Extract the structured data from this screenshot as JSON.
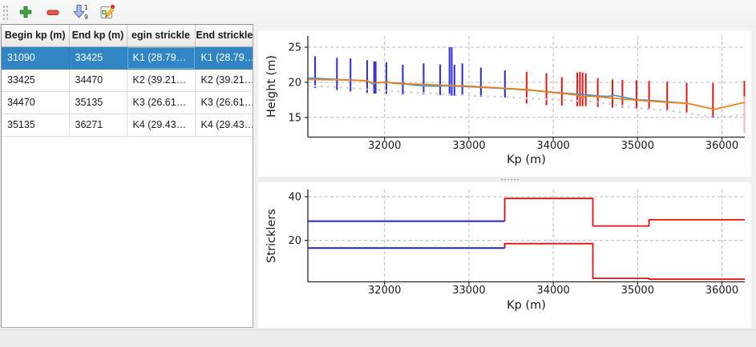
{
  "toolbar": {
    "buttons": [
      {
        "name": "add",
        "icon": "plus-icon"
      },
      {
        "name": "remove",
        "icon": "minus-icon"
      },
      {
        "name": "sort",
        "icon": "sort-numeric-down-icon",
        "digit_top": "1",
        "digit_bottom": "9"
      },
      {
        "name": "edit",
        "icon": "edit-pencil-page-icon"
      }
    ]
  },
  "table": {
    "columns": [
      "Begin kp (m)",
      "End kp (m)",
      "egin strickle",
      "End strickler"
    ],
    "rows": [
      [
        "31090",
        "33425",
        "K1 (28.79…",
        "K1 (28.79…"
      ],
      [
        "33425",
        "34470",
        "K2 (39.21…",
        "K2 (39.21…"
      ],
      [
        "34470",
        "35135",
        "K3 (26.61…",
        "K3 (26.61…"
      ],
      [
        "35135",
        "36271",
        "K4 (29.43…",
        "K4 (29.43…"
      ]
    ],
    "selected_row_index": 0,
    "focused_cell_column": 2
  },
  "colors": {
    "selection_blue": "#3086c5",
    "spike_blue": "#3434d6",
    "spike_red": "#e01818",
    "spike_pale_red": "#f6b4b4",
    "line_blue": "#4f95cc",
    "line_orange": "#e8831a",
    "line_gray_dotted": "#cccccc",
    "step_blue": "#2121cc",
    "step_red": "#e81010"
  },
  "chart_data": [
    {
      "type": "line",
      "title": "",
      "xlabel": "Kp (m)",
      "ylabel": "Height (m)",
      "xlim": [
        31090,
        36271
      ],
      "ylim": [
        12.2,
        26.6
      ],
      "xticks": [
        32000,
        33000,
        34000,
        35000,
        36000
      ],
      "yticks": [
        15,
        20,
        25
      ],
      "grid": true,
      "legend": "none",
      "series": [
        {
          "name": "blue-cross-section-spikes",
          "type": "vlines",
          "color": "#3434d6",
          "width": 2.1,
          "lines": [
            [
              31176,
              19.2,
              23.7
            ],
            [
              31435,
              18.9,
              23.5
            ],
            [
              31596,
              18.7,
              23.4
            ],
            [
              31793,
              18.5,
              23.15
            ],
            [
              31876,
              18.4,
              23.0
            ],
            [
              31894,
              18.4,
              22.95
            ],
            [
              32021,
              18.35,
              22.85
            ],
            [
              32216,
              18.3,
              22.5
            ],
            [
              32463,
              18.25,
              22.7
            ],
            [
              32659,
              18.2,
              22.55
            ],
            [
              32770,
              18.1,
              25.0
            ],
            [
              32796,
              18.1,
              25.0
            ],
            [
              32828,
              18.1,
              22.5
            ],
            [
              32922,
              18.1,
              22.7
            ],
            [
              33142,
              17.95,
              22.1
            ],
            [
              33427,
              17.85,
              21.7
            ]
          ]
        },
        {
          "name": "red-cross-section-spikes",
          "type": "vlines",
          "color": "#e01818",
          "width": 2.0,
          "lines": [
            [
              33684,
              17.0,
              21.5
            ],
            [
              33919,
              16.75,
              21.3
            ],
            [
              34102,
              16.7,
              20.75
            ],
            [
              34285,
              16.6,
              21.4
            ],
            [
              34317,
              16.6,
              21.5
            ],
            [
              34348,
              16.6,
              21.4
            ],
            [
              34386,
              16.6,
              21.3
            ],
            [
              34528,
              16.5,
              20.6
            ],
            [
              34702,
              16.4,
              20.4
            ],
            [
              34820,
              16.4,
              20.35
            ],
            [
              34987,
              16.3,
              20.3
            ],
            [
              35136,
              16.2,
              20.2
            ],
            [
              35351,
              15.9,
              20.1
            ],
            [
              35582,
              15.7,
              19.9
            ],
            [
              35894,
              15.0,
              19.9
            ],
            [
              36266,
              18.0,
              20.2
            ]
          ]
        },
        {
          "name": "pale-red-spike",
          "type": "vlines",
          "color": "#f6b4b4",
          "width": 2.0,
          "lines": [
            [
              36266,
              12.8,
              18.0
            ]
          ]
        },
        {
          "name": "bed-profile-dotted-gray",
          "type": "dotted",
          "color": "#cccccc",
          "width": 2.4,
          "points": [
            [
              31090,
              19.55
            ],
            [
              31450,
              19.3
            ],
            [
              31790,
              19.0
            ],
            [
              32030,
              18.8
            ],
            [
              32350,
              18.55
            ],
            [
              32700,
              18.3
            ],
            [
              33000,
              18.1
            ],
            [
              33430,
              17.9
            ],
            [
              34000,
              17.55
            ],
            [
              34470,
              17.25
            ],
            [
              35000,
              16.35
            ],
            [
              35455,
              15.85
            ],
            [
              35940,
              15.0
            ],
            [
              36271,
              15.4
            ]
          ]
        },
        {
          "name": "water-level-blue",
          "type": "line",
          "color": "#4f95cc",
          "width": 1.7,
          "points": [
            [
              31090,
              20.65
            ],
            [
              31300,
              20.5
            ],
            [
              31450,
              20.4
            ],
            [
              31650,
              20.3
            ],
            [
              31790,
              20.25
            ],
            [
              31850,
              19.8
            ],
            [
              31910,
              19.95
            ],
            [
              32030,
              20.05
            ],
            [
              32110,
              19.85
            ],
            [
              32250,
              19.75
            ],
            [
              32380,
              19.55
            ],
            [
              32470,
              19.5
            ],
            [
              32600,
              19.45
            ],
            [
              32800,
              19.5
            ],
            [
              32950,
              19.4
            ],
            [
              33140,
              19.3
            ],
            [
              33430,
              19.1
            ],
            [
              33700,
              18.9
            ],
            [
              34000,
              18.6
            ],
            [
              34300,
              18.3
            ],
            [
              34470,
              18.15
            ],
            [
              34560,
              18.05
            ],
            [
              34650,
              18.0
            ],
            [
              34720,
              18.15
            ],
            [
              34810,
              17.95
            ],
            [
              35000,
              17.5
            ],
            [
              35140,
              17.45
            ],
            [
              35590,
              17.0
            ]
          ]
        },
        {
          "name": "profile-orange",
          "type": "line",
          "color": "#e8831a",
          "width": 1.8,
          "points": [
            [
              31090,
              20.4
            ],
            [
              31450,
              20.35
            ],
            [
              31650,
              20.3
            ],
            [
              31790,
              20.2
            ],
            [
              31870,
              19.9
            ],
            [
              32030,
              20.0
            ],
            [
              32250,
              19.8
            ],
            [
              32470,
              19.7
            ],
            [
              32800,
              19.55
            ],
            [
              33000,
              19.45
            ],
            [
              33430,
              19.15
            ],
            [
              33700,
              18.95
            ],
            [
              34000,
              18.55
            ],
            [
              34280,
              18.2
            ],
            [
              34330,
              17.85
            ],
            [
              34400,
              18.05
            ],
            [
              34470,
              18.0
            ],
            [
              35000,
              17.45
            ],
            [
              35300,
              17.2
            ],
            [
              35590,
              17.0
            ],
            [
              35910,
              16.15
            ],
            [
              36271,
              17.15
            ]
          ]
        }
      ]
    },
    {
      "type": "step",
      "title": "",
      "xlabel": "Kp (m)",
      "ylabel": "Stricklers",
      "xlim": [
        31090,
        36271
      ],
      "ylim": [
        1.0,
        43.3
      ],
      "xticks": [
        32000,
        33000,
        34000,
        35000,
        36000
      ],
      "yticks": [
        20,
        40
      ],
      "grid": true,
      "legend": "none",
      "series": [
        {
          "name": "upper-strickler-red",
          "type": "line",
          "color": "#e81010",
          "width": 1.8,
          "points": [
            [
              33425,
              28.79
            ],
            [
              33425,
              39.21
            ],
            [
              34470,
              39.21
            ],
            [
              34470,
              26.61
            ],
            [
              35135,
              26.61
            ],
            [
              35135,
              29.43
            ],
            [
              36271,
              29.43
            ]
          ]
        },
        {
          "name": "lower-strickler-red",
          "type": "line",
          "color": "#e81010",
          "width": 1.8,
          "points": [
            [
              33425,
              16.5
            ],
            [
              33425,
              18.5
            ],
            [
              34470,
              18.5
            ],
            [
              34470,
              2.6
            ],
            [
              35135,
              2.6
            ],
            [
              35135,
              2.2
            ],
            [
              36271,
              2.2
            ]
          ]
        },
        {
          "name": "upper-strickler-blue",
          "type": "line",
          "color": "#2121cc",
          "width": 2.0,
          "points": [
            [
              31090,
              28.79
            ],
            [
              33425,
              28.79
            ]
          ]
        },
        {
          "name": "lower-strickler-blue",
          "type": "line",
          "color": "#2121cc",
          "width": 2.0,
          "points": [
            [
              31090,
              16.5
            ],
            [
              33425,
              16.5
            ]
          ]
        }
      ]
    }
  ]
}
